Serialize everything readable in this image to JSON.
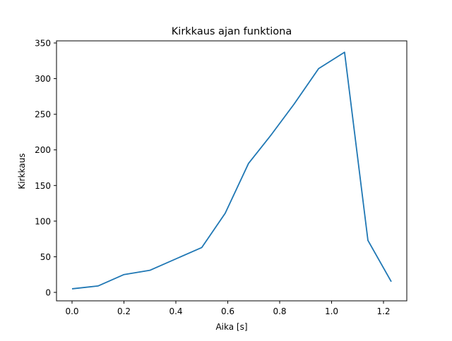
{
  "chart_data": {
    "type": "line",
    "title": "Kirkkaus ajan funktiona",
    "xlabel": "Aika [s]",
    "ylabel": "Kirkkaus",
    "xlim": [
      -0.06,
      1.29
    ],
    "ylim": [
      -12,
      352
    ],
    "xticks": [
      0.0,
      0.2,
      0.4,
      0.6,
      0.8,
      1.0,
      1.2
    ],
    "xtick_labels": [
      "0.0",
      "0.2",
      "0.4",
      "0.6",
      "0.8",
      "1.0",
      "1.2"
    ],
    "yticks": [
      0,
      50,
      100,
      150,
      200,
      250,
      300,
      350
    ],
    "ytick_labels": [
      "0",
      "50",
      "100",
      "150",
      "200",
      "250",
      "300",
      "350"
    ],
    "grid": false,
    "series": [
      {
        "name": "Kirkkaus",
        "color": "#1f77b4",
        "x": [
          0.0,
          0.1,
          0.2,
          0.3,
          0.5,
          0.59,
          0.68,
          0.765,
          0.855,
          0.95,
          1.05,
          1.14,
          1.23
        ],
        "y": [
          5,
          9,
          25,
          31,
          63,
          111,
          181,
          220,
          264,
          314,
          337,
          73,
          15
        ]
      }
    ]
  }
}
